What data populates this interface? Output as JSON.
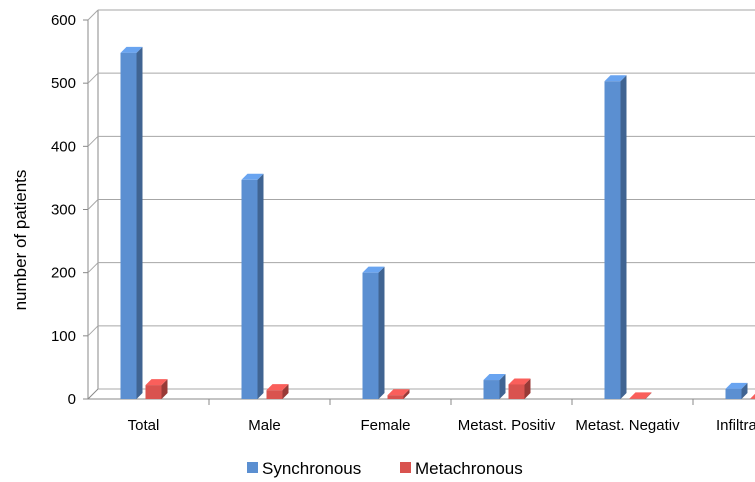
{
  "chart_data": {
    "type": "bar",
    "categories": [
      "Total",
      "Male",
      "Female",
      "Metast. Positiv",
      "Metast. Negativ",
      "Infiltration"
    ],
    "series": [
      {
        "name": "Synchronous",
        "values": [
          548,
          347,
          200,
          30,
          503,
          16
        ],
        "color": "#5b8fd1"
      },
      {
        "name": "Metachronous",
        "values": [
          22,
          14,
          6,
          23,
          1,
          1
        ],
        "color": "#d9534f"
      }
    ],
    "ylabel": "number of patients",
    "xlabel": "",
    "ylim": [
      0,
      600
    ],
    "yticks": [
      0,
      100,
      200,
      300,
      400,
      500,
      600
    ],
    "grid": true,
    "legend_position": "bottom"
  }
}
